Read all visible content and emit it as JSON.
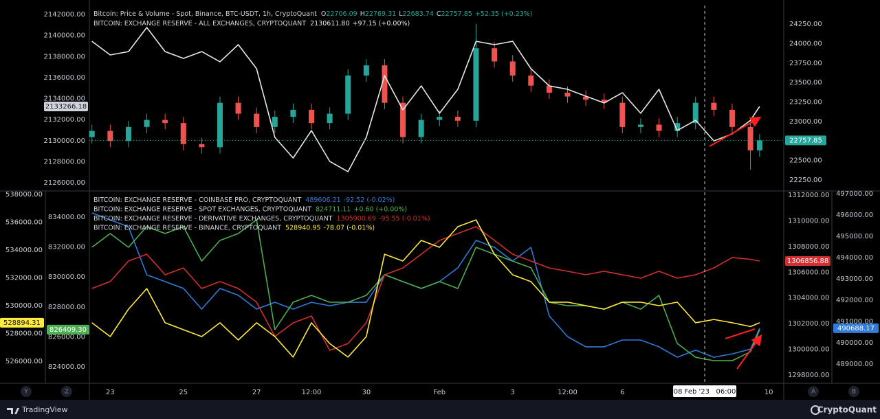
{
  "chart_data": [
    {
      "type": "candlestick",
      "title": "Bitcoin: Price & Volume - Spot, Binance, BTC-USDT, 1h, CryptoQuant",
      "ohlc": [
        {
          "key": "O",
          "value": "22706.09"
        },
        {
          "key": "H",
          "value": "22769.31"
        },
        {
          "key": "L",
          "value": "22683.74"
        },
        {
          "key": "C",
          "value": "22757.85"
        }
      ],
      "change": "+52.35 (+0.23%)",
      "up_color": "#26a69a",
      "down_color": "#ef5350",
      "xlim": [
        22.43,
        41.41
      ],
      "x": [
        22.5,
        23,
        23.5,
        24,
        24.5,
        25,
        25.5,
        26,
        26.5,
        27,
        27.5,
        28,
        28.5,
        29,
        29.5,
        30,
        30.5,
        31,
        31.5,
        32,
        32.5,
        33,
        33.5,
        34,
        34.5,
        35,
        35.5,
        36,
        36.5,
        37,
        37.5,
        38,
        38.5,
        39,
        39.5,
        40,
        40.5,
        40.75
      ],
      "open": [
        22800,
        22880,
        22750,
        22930,
        23020,
        22980,
        22710,
        22670,
        23240,
        23100,
        22930,
        23060,
        23150,
        22980,
        23100,
        23590,
        23720,
        23240,
        22800,
        23020,
        23060,
        23010,
        23940,
        23770,
        23590,
        23460,
        23370,
        23320,
        23280,
        23240,
        22930,
        22960,
        22880,
        22980,
        23240,
        23150,
        22930,
        22630
      ],
      "high": [
        22960,
        22960,
        23010,
        23100,
        23100,
        23060,
        22790,
        23320,
        23320,
        23180,
        23140,
        23230,
        23230,
        23180,
        23670,
        23800,
        23800,
        23320,
        23100,
        23140,
        23140,
        24250,
        24020,
        23850,
        23670,
        23540,
        23450,
        23400,
        23360,
        23320,
        23040,
        23040,
        23060,
        23320,
        23320,
        23230,
        23010,
        22840
      ],
      "low": [
        22720,
        22670,
        22670,
        22850,
        22900,
        22630,
        22590,
        22590,
        23020,
        22850,
        22850,
        22980,
        22900,
        22900,
        23020,
        23510,
        23160,
        22720,
        22720,
        22940,
        22930,
        22930,
        23690,
        23510,
        23380,
        23290,
        23240,
        23200,
        23160,
        22850,
        22850,
        22800,
        22800,
        22900,
        23070,
        22850,
        22380,
        22550
      ],
      "close": [
        22880,
        22750,
        22930,
        23020,
        22980,
        22710,
        22670,
        23240,
        23100,
        22930,
        23060,
        23150,
        22980,
        23100,
        23590,
        23720,
        23240,
        22800,
        23020,
        23060,
        23010,
        23940,
        23770,
        23590,
        23460,
        23370,
        23320,
        23280,
        23240,
        22930,
        22960,
        22880,
        22980,
        23240,
        23150,
        22930,
        22630,
        22757.85
      ],
      "last_label": "22757.85",
      "ylim": [
        22118,
        24488
      ],
      "yticks": [
        {
          "value": 22250,
          "label": "22250.00"
        },
        {
          "value": 22500,
          "label": "22500.00"
        },
        {
          "value": 22750,
          "label": "22750.00"
        },
        {
          "value": 23000,
          "label": "23000.00"
        },
        {
          "value": 23250,
          "label": "23250.00"
        },
        {
          "value": 23500,
          "label": "23500.00"
        },
        {
          "value": 23750,
          "label": "23750.00"
        },
        {
          "value": 24000,
          "label": "24000.00"
        },
        {
          "value": 24250,
          "label": "24250.00"
        }
      ],
      "y2lim": [
        2125283,
        2142849
      ],
      "y2ticks": [
        {
          "value": 2126000,
          "label": "2126000.00"
        },
        {
          "value": 2128000,
          "label": "2128000.00"
        },
        {
          "value": 2130000,
          "label": "2130000.00"
        },
        {
          "value": 2132000,
          "label": "2132000.00"
        },
        {
          "value": 2134000,
          "label": "2134000.00"
        },
        {
          "value": 2136000,
          "label": "2136000.00"
        },
        {
          "value": 2138000,
          "label": "2138000.00"
        },
        {
          "value": 2140000,
          "label": "2140000.00"
        },
        {
          "value": 2142000,
          "label": "2142000.00"
        }
      ],
      "series": [
        {
          "name": "BITCOIN: EXCHANGE RESERVE - ALL EXCHANGES, CRYPTOQUANT",
          "value_text": "2130611.80",
          "change": "+97.15 (+0.00%)",
          "color": "#e8e8e8",
          "axis": "y2",
          "last_label": "2133266.18",
          "values": [
            2139450,
            2138150,
            2138470,
            2140760,
            2138470,
            2137820,
            2138470,
            2137500,
            2139130,
            2136840,
            2130310,
            2128350,
            2130960,
            2128030,
            2127050,
            2130310,
            2136190,
            2132920,
            2135210,
            2132600,
            2134880,
            2139450,
            2139130,
            2139450,
            2136840,
            2135210,
            2134880,
            2134230,
            2133580,
            2134560,
            2132600,
            2134880,
            2130960,
            2131940,
            2129980,
            2130640,
            2131940,
            2133250
          ]
        }
      ]
    },
    {
      "type": "line",
      "xlim": [
        22.43,
        41.41
      ],
      "x": [
        22.5,
        23,
        23.5,
        24,
        24.5,
        25,
        25.5,
        26,
        26.5,
        27,
        27.5,
        28,
        28.5,
        29,
        29.5,
        30,
        30.5,
        31,
        31.5,
        32,
        32.5,
        33,
        33.5,
        34,
        34.5,
        35,
        35.5,
        36,
        36.5,
        37,
        37.5,
        38,
        38.5,
        39,
        39.5,
        40,
        40.5,
        40.75
      ],
      "xticks": [
        23,
        25,
        27,
        {
          "value": 28.5,
          "label": "12:00"
        },
        30,
        {
          "value": 32,
          "label": "Feb"
        },
        {
          "value": 34,
          "label": "3"
        },
        {
          "value": 35.5,
          "label": "12:00"
        },
        {
          "value": 37,
          "label": "6"
        },
        {
          "value": 41,
          "label": "10"
        }
      ],
      "crosshair": {
        "value": 39.25,
        "label": "08 Feb '23   06:00"
      },
      "ylim": [
        524519,
        538198
      ],
      "yticks": [
        {
          "value": 526000,
          "label": "526000.00"
        },
        {
          "value": 528000,
          "label": "528000.00"
        },
        {
          "value": 530000,
          "label": "530000.00"
        },
        {
          "value": 532000,
          "label": "532000.00"
        },
        {
          "value": 534000,
          "label": "534000.00"
        },
        {
          "value": 536000,
          "label": "536000.00"
        },
        {
          "value": 538000,
          "label": "538000.00"
        }
      ],
      "y2lim": [
        488161,
        497097
      ],
      "y2ticks": [
        {
          "value": 489000,
          "label": "489000.00"
        },
        {
          "value": 490000,
          "label": "490000.00"
        },
        {
          "value": 491000,
          "label": "491000.00"
        },
        {
          "value": 492000,
          "label": "492000.00"
        },
        {
          "value": 493000,
          "label": "493000.00"
        },
        {
          "value": 494000,
          "label": "494000.00"
        },
        {
          "value": 495000,
          "label": "495000.00"
        },
        {
          "value": 496000,
          "label": "496000.00"
        },
        {
          "value": 497000,
          "label": "497000.00"
        }
      ],
      "y3lim": [
        822991,
        835697
      ],
      "y3ticks": [
        {
          "value": 824000,
          "label": "824000.00"
        },
        {
          "value": 826000,
          "label": "826000.00"
        },
        {
          "value": 828000,
          "label": "828000.00"
        },
        {
          "value": 830000,
          "label": "830000.00"
        },
        {
          "value": 832000,
          "label": "832000.00"
        },
        {
          "value": 834000,
          "label": "834000.00"
        }
      ],
      "y4lim": [
        1297462,
        1312267
      ],
      "y4ticks": [
        {
          "value": 1298000,
          "label": "1298000.00"
        },
        {
          "value": 1300000,
          "label": "1300000.00"
        },
        {
          "value": 1302000,
          "label": "1302000.00"
        },
        {
          "value": 1304000,
          "label": "1304000.00"
        },
        {
          "value": 1306000,
          "label": "1306000.00"
        },
        {
          "value": 1308000,
          "label": "1308000.00"
        },
        {
          "value": 1310000,
          "label": "1310000.00"
        },
        {
          "value": 1312000,
          "label": "1312000.00"
        }
      ],
      "series": [
        {
          "name": "BITCOIN: EXCHANGE RESERVE - COINBASE PRO, CRYPTOQUANT",
          "value_text": "489606.21",
          "change": "-92.52 (-0.02%)",
          "color": "#2f7bd9",
          "axis": "y2",
          "last_label": "490688.17",
          "values": [
            496100,
            495770,
            495450,
            493190,
            492870,
            492550,
            491580,
            492550,
            492230,
            491580,
            491900,
            491580,
            491900,
            491740,
            491900,
            491900,
            493190,
            492870,
            492550,
            492870,
            493520,
            494810,
            494480,
            493840,
            494480,
            491260,
            490290,
            489810,
            489810,
            490130,
            490130,
            489810,
            489320,
            489650,
            489320,
            489480,
            489700,
            490680
          ]
        },
        {
          "name": "BITCOIN: EXCHANGE RESERVE - SPOT EXCHANGES, CRYPTOQUANT",
          "value_text": "824711.11",
          "change": "+0.60 (+0.00%)",
          "color": "#4caf50",
          "axis": "y3",
          "last_label": "826409.30",
          "values": [
            831980,
            832900,
            831980,
            833360,
            832900,
            833360,
            831060,
            832440,
            832900,
            833820,
            826480,
            828310,
            828770,
            828310,
            828310,
            828770,
            830150,
            829690,
            829230,
            829690,
            829230,
            831980,
            831520,
            831060,
            830610,
            828310,
            828080,
            828080,
            827850,
            828310,
            827850,
            828770,
            825560,
            824640,
            824410,
            824410,
            825000,
            826480
          ]
        },
        {
          "name": "BITCOIN: EXCHANGE RESERVE - DERIVATIVE EXCHANGES, CRYPTOQUANT",
          "value_text": "1305900.69",
          "change": "-95.55 (-0.01%)",
          "color": "#d32f2f",
          "axis": "y4",
          "last_label": "1306856.88",
          "values": [
            1304730,
            1305270,
            1306870,
            1307400,
            1305800,
            1306330,
            1304730,
            1305270,
            1304730,
            1303660,
            1301000,
            1302060,
            1302590,
            1299920,
            1300450,
            1302060,
            1305800,
            1306330,
            1307400,
            1308470,
            1309010,
            1309540,
            1308470,
            1307400,
            1306870,
            1306330,
            1306070,
            1305800,
            1306070,
            1305800,
            1305530,
            1306070,
            1305530,
            1305800,
            1306330,
            1307140,
            1307000,
            1306870
          ]
        },
        {
          "name": "BITCOIN: EXCHANGE RESERVE - BINANCE, CRYPTOQUANT",
          "value_text": "528940.95",
          "change": "-78.07 (-0.01%)",
          "color": "#ffeb3b",
          "axis": "y",
          "last_label": "528894.31",
          "values": [
            528770,
            527780,
            529750,
            531230,
            528770,
            528270,
            527780,
            528770,
            527530,
            528770,
            527780,
            526300,
            528770,
            527280,
            526300,
            527780,
            533700,
            533210,
            534690,
            534200,
            535680,
            536170,
            533700,
            532220,
            531730,
            530250,
            530250,
            530000,
            529750,
            530250,
            530250,
            530000,
            530250,
            528770,
            529010,
            528770,
            528500,
            528770
          ]
        }
      ]
    }
  ],
  "ui": {
    "brand_left": "TradingView",
    "brand_right": "CryptoQuant",
    "axis_buttons": [
      "Y",
      "Z",
      "A",
      "B"
    ]
  }
}
